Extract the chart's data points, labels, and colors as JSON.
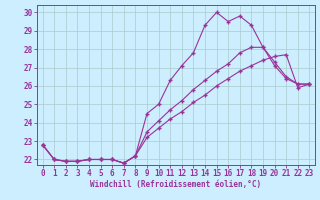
{
  "title": "",
  "xlabel": "Windchill (Refroidissement éolien,°C)",
  "ylabel": "",
  "xlim": [
    -0.5,
    23.5
  ],
  "ylim": [
    21.7,
    30.4
  ],
  "yticks": [
    22,
    23,
    24,
    25,
    26,
    27,
    28,
    29,
    30
  ],
  "xticks": [
    0,
    1,
    2,
    3,
    4,
    5,
    6,
    7,
    8,
    9,
    10,
    11,
    12,
    13,
    14,
    15,
    16,
    17,
    18,
    19,
    20,
    21,
    22,
    23
  ],
  "background_color": "#cceeff",
  "grid_color": "#aacccc",
  "line_color": "#993399",
  "hours": [
    0,
    1,
    2,
    3,
    4,
    5,
    6,
    7,
    8,
    9,
    10,
    11,
    12,
    13,
    14,
    15,
    16,
    17,
    18,
    19,
    20,
    21,
    22,
    23
  ],
  "line1": [
    22.8,
    22.0,
    21.9,
    21.9,
    22.0,
    22.0,
    22.0,
    21.8,
    22.2,
    24.5,
    25.0,
    26.3,
    27.1,
    27.8,
    29.3,
    30.0,
    29.5,
    29.8,
    29.3,
    28.1,
    27.3,
    26.5,
    26.1,
    26.1
  ],
  "line2": [
    22.8,
    22.0,
    21.9,
    21.9,
    22.0,
    22.0,
    22.0,
    21.8,
    22.2,
    23.5,
    24.1,
    24.7,
    25.2,
    25.8,
    26.3,
    26.8,
    27.2,
    27.8,
    28.1,
    28.1,
    27.1,
    26.4,
    26.1,
    26.1
  ],
  "line3": [
    22.8,
    22.0,
    21.9,
    21.9,
    22.0,
    22.0,
    22.0,
    21.8,
    22.2,
    23.2,
    23.7,
    24.2,
    24.6,
    25.1,
    25.5,
    26.0,
    26.4,
    26.8,
    27.1,
    27.4,
    27.6,
    27.7,
    25.9,
    26.1
  ],
  "xlabel_fontsize": 5.5,
  "tick_fontsize": 5.5,
  "marker_size": 3,
  "linewidth": 0.8
}
